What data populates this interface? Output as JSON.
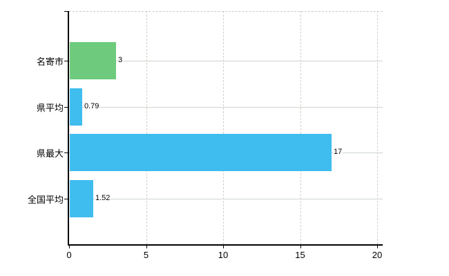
{
  "chart_data": {
    "type": "bar",
    "orientation": "horizontal",
    "categories": [
      "名寄市",
      "県平均",
      "県最大",
      "全国平均"
    ],
    "values": [
      3,
      0.79,
      17,
      1.52
    ],
    "value_labels": [
      "3",
      "0.79",
      "17",
      "1.52"
    ],
    "series": [
      {
        "name": "value",
        "values": [
          3,
          0.79,
          17,
          1.52
        ]
      }
    ],
    "bar_colors": [
      "#6ECB7D",
      "#3FBDEE",
      "#3FBDEE",
      "#3FBDEE"
    ],
    "x_tick_labels": [
      "0",
      "5",
      "10",
      "15",
      "20"
    ],
    "x_tick_values": [
      0,
      5,
      10,
      15,
      20
    ],
    "xlim": [
      0,
      20.4
    ],
    "xlabel": "",
    "ylabel": "",
    "grid": true,
    "legend": "none",
    "colors": {
      "axis": "#000000",
      "horizontal_gridline": "#ccd4cc",
      "vertical_gridline": "#d4cfc9",
      "top_border": "#c9c9c9",
      "background": "#ffffff",
      "label_text": "#000000"
    }
  }
}
